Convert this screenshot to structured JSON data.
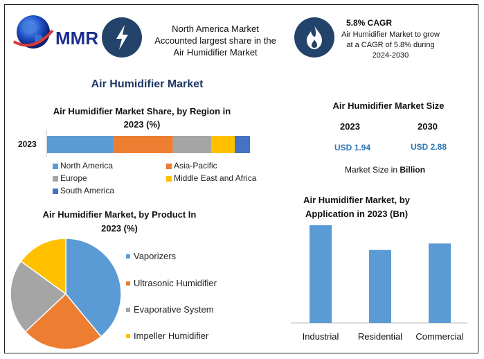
{
  "header": {
    "logo_text": "MMR",
    "fact1": [
      "North America Market",
      "Accounted largest share in the",
      "Air Humidifier Market"
    ],
    "fact2_title": "5.8% CAGR",
    "fact2_lines": [
      "Air Humidifier Market to grow",
      "at a CAGR of 5.8% during",
      "2024-2030"
    ],
    "icon1": "lightning-icon",
    "icon2": "flame-icon"
  },
  "main_title": "Air Humidifier Market",
  "colors": {
    "north_america": "#5b9bd5",
    "asia_pacific": "#ed7d31",
    "europe": "#a5a5a5",
    "mea": "#ffc000",
    "south_america": "#4472c4",
    "value_blue": "#2e75b6",
    "title_navy": "#1f3864",
    "icon_bg": "#24436b"
  },
  "region_chart": {
    "title_l1": "Air Humidifier Market Share, by Region in",
    "title_l2": "2023 (%)",
    "row_label": "2023",
    "legend": [
      "North America",
      "Asia-Pacific",
      "Europe",
      "Middle East and Africa",
      "South America"
    ]
  },
  "size_panel": {
    "title": "Air Humidifier Market Size",
    "year1": "2023",
    "year2": "2030",
    "value1": "USD 1.94",
    "value2": "USD 2.88",
    "note_prefix": "Market Size in ",
    "note_bold": "Billion"
  },
  "product_chart": {
    "title_l1": "Air Humidifier Market, by Product In",
    "title_l2": "2023 (%)",
    "legend": [
      "Vaporizers",
      "Ultrasonic Humidifier",
      "Evaporative System",
      "Impeller Humidifier"
    ]
  },
  "application_chart": {
    "title_l1": "Air Humidifier Market, by",
    "title_l2": "Application in 2023 (Bn)"
  },
  "chart_data": [
    {
      "type": "bar",
      "orientation": "horizontal-stacked",
      "title": "Air Humidifier Market Share, by Region in 2023 (%)",
      "categories": [
        "2023"
      ],
      "series": [
        {
          "name": "North America",
          "values": [
            33
          ]
        },
        {
          "name": "Asia-Pacific",
          "values": [
            29
          ]
        },
        {
          "name": "Europe",
          "values": [
            19
          ]
        },
        {
          "name": "Middle East and Africa",
          "values": [
            11.5
          ]
        },
        {
          "name": "South America",
          "values": [
            7.5
          ]
        }
      ],
      "legend_position": "bottom"
    },
    {
      "type": "pie",
      "title": "Air Humidifier Market, by Product In 2023 (%)",
      "categories": [
        "Vaporizers",
        "Ultrasonic Humidifier",
        "Evaporative System",
        "Impeller Humidifier"
      ],
      "values": [
        39,
        24,
        22,
        15
      ],
      "legend_position": "right"
    },
    {
      "type": "bar",
      "title": "Air Humidifier Market, by Application in 2023 (Bn)",
      "categories": [
        "Industrial",
        "Residential",
        "Commercial"
      ],
      "values": [
        0.75,
        0.56,
        0.61
      ],
      "ylim": [
        0,
        0.75
      ],
      "grid": false
    }
  ]
}
